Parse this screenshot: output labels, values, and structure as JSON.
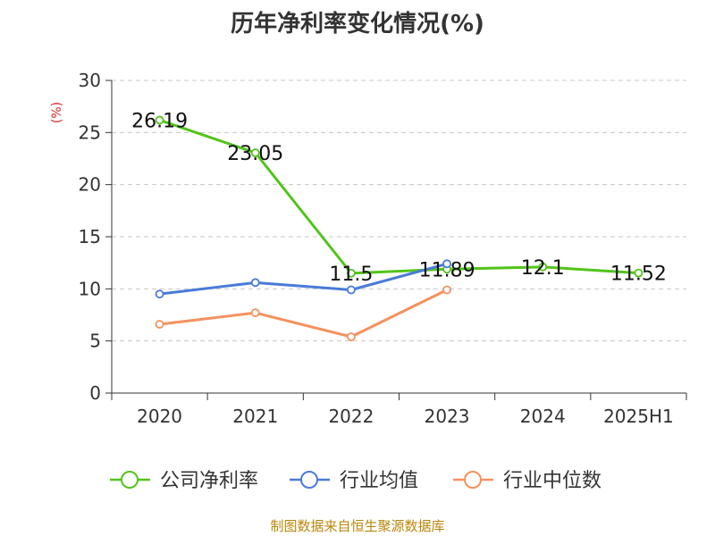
{
  "title": "历年净利率变化情况(%)",
  "source": "制图数据来自恒生聚源数据库",
  "chart_data": {
    "type": "line",
    "title": "历年净利率变化情况(%)",
    "ylabel": "(%)",
    "ylim": [
      0,
      30
    ],
    "yticks": [
      0,
      5,
      10,
      15,
      20,
      25,
      30
    ],
    "categories": [
      "2020",
      "2021",
      "2022",
      "2023",
      "2024",
      "2025H1"
    ],
    "grid": true,
    "legend_position": "bottom",
    "series": [
      {
        "name": "公司净利率",
        "color": "#52c41a",
        "values": [
          26.19,
          23.05,
          11.5,
          11.89,
          12.1,
          11.52
        ],
        "labels": [
          "26.19",
          "23.05",
          "11.5",
          "11.89",
          "12.1",
          "11.52"
        ]
      },
      {
        "name": "行业均值",
        "color": "#4a7bd8",
        "values": [
          9.5,
          10.6,
          9.9,
          12.4,
          null,
          null
        ]
      },
      {
        "name": "行业中位数",
        "color": "#f4915e",
        "values": [
          6.6,
          7.7,
          5.4,
          9.9,
          null,
          null
        ]
      }
    ]
  }
}
